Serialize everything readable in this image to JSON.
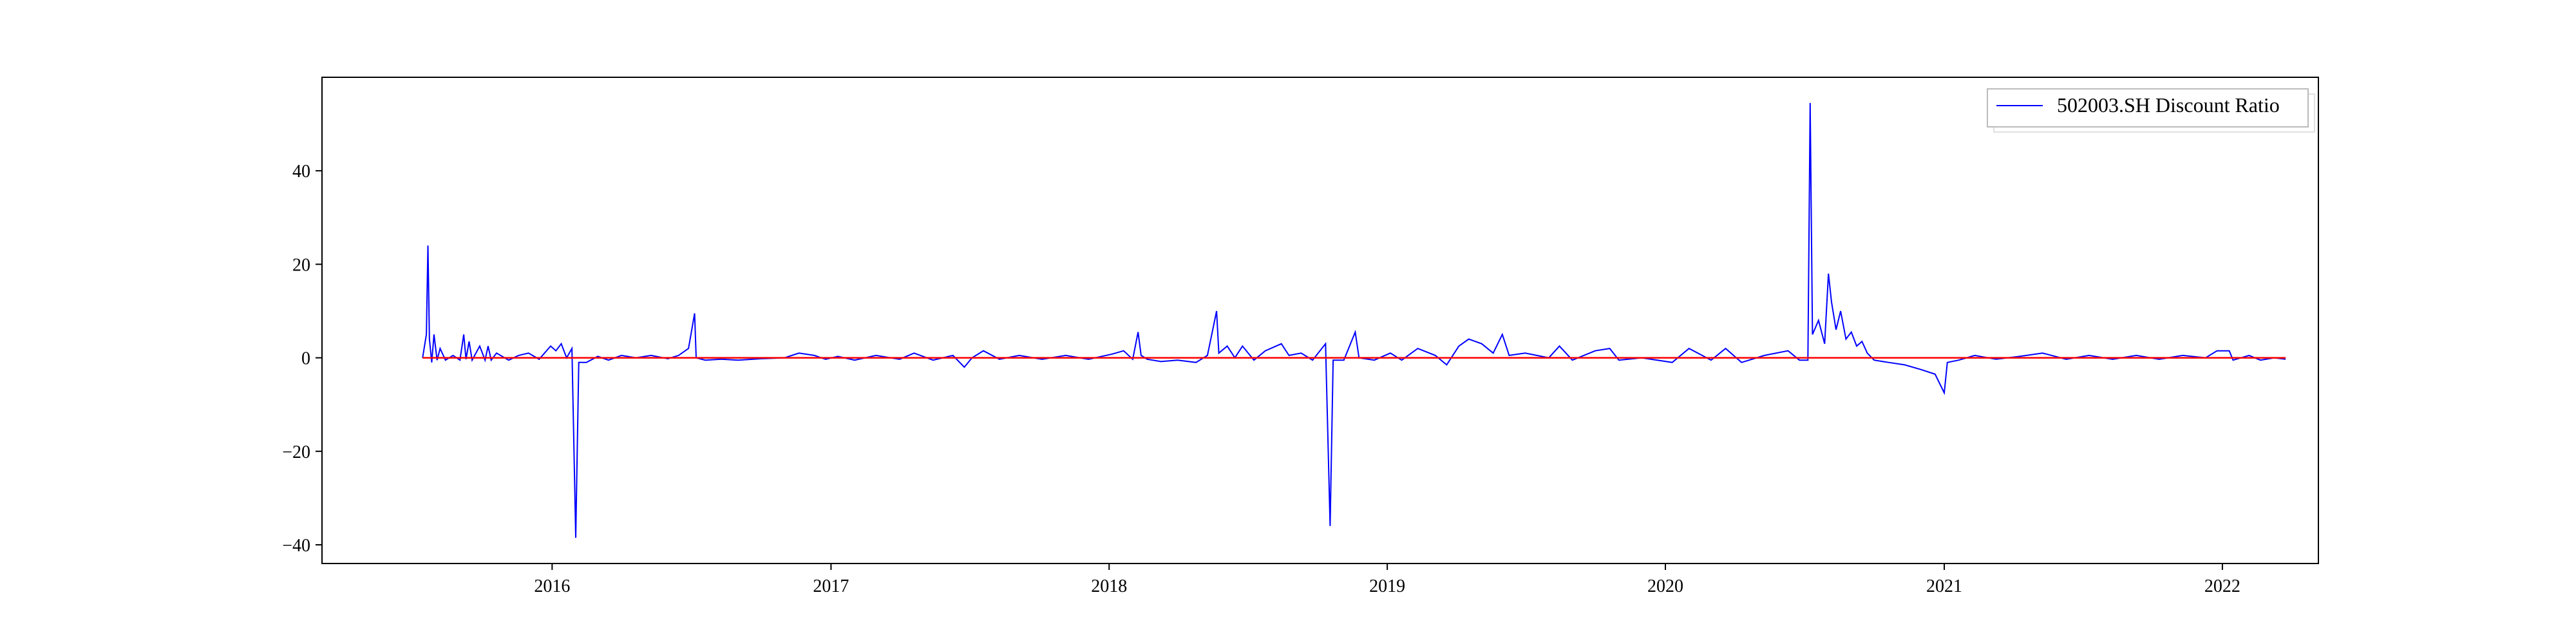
{
  "chart_data": {
    "type": "line",
    "title": "",
    "xlabel": "",
    "ylabel": "",
    "xlim": [
      "2015-03-05",
      "2022-05-07"
    ],
    "ylim": [
      -44,
      60
    ],
    "x_ticks": [
      "2016",
      "2017",
      "2018",
      "2019",
      "2020",
      "2021",
      "2022"
    ],
    "y_ticks": [
      40,
      20,
      0,
      -20,
      -40
    ],
    "grid": false,
    "legend": {
      "placement": "top-right"
    },
    "series": [
      {
        "name": "502003.SH Discount Ratio",
        "color": "#0000ff",
        "points": [
          [
            "2015-07-15",
            0.0
          ],
          [
            "2015-07-20",
            5.0
          ],
          [
            "2015-07-22",
            24.0
          ],
          [
            "2015-07-24",
            4.0
          ],
          [
            "2015-07-27",
            -1.0
          ],
          [
            "2015-07-30",
            5.0
          ],
          [
            "2015-08-03",
            -0.5
          ],
          [
            "2015-08-07",
            2.0
          ],
          [
            "2015-08-14",
            -0.5
          ],
          [
            "2015-08-24",
            0.5
          ],
          [
            "2015-09-02",
            -0.5
          ],
          [
            "2015-09-07",
            5.0
          ],
          [
            "2015-09-10",
            -0.3
          ],
          [
            "2015-09-14",
            3.5
          ],
          [
            "2015-09-18",
            -0.5
          ],
          [
            "2015-09-28",
            2.5
          ],
          [
            "2015-10-05",
            -0.5
          ],
          [
            "2015-10-09",
            2.5
          ],
          [
            "2015-10-13",
            -0.5
          ],
          [
            "2015-10-20",
            1.0
          ],
          [
            "2015-11-05",
            -0.5
          ],
          [
            "2015-11-18",
            0.5
          ],
          [
            "2015-12-01",
            1.0
          ],
          [
            "2015-12-15",
            -0.3
          ],
          [
            "2015-12-30",
            2.5
          ],
          [
            "2016-01-06",
            1.5
          ],
          [
            "2016-01-13",
            3.0
          ],
          [
            "2016-01-20",
            0.0
          ],
          [
            "2016-01-27",
            2.0
          ],
          [
            "2016-02-01",
            -38.5
          ],
          [
            "2016-02-05",
            -1.0
          ],
          [
            "2016-02-15",
            -1.0
          ],
          [
            "2016-03-01",
            0.3
          ],
          [
            "2016-03-15",
            -0.5
          ],
          [
            "2016-04-01",
            0.5
          ],
          [
            "2016-04-20",
            0.0
          ],
          [
            "2016-05-10",
            0.5
          ],
          [
            "2016-06-01",
            -0.2
          ],
          [
            "2016-06-15",
            0.5
          ],
          [
            "2016-06-28",
            2.0
          ],
          [
            "2016-07-06",
            9.5
          ],
          [
            "2016-07-08",
            0.0
          ],
          [
            "2016-07-20",
            -0.5
          ],
          [
            "2016-08-10",
            -0.3
          ],
          [
            "2016-09-01",
            -0.5
          ],
          [
            "2016-10-01",
            -0.2
          ],
          [
            "2016-11-01",
            0.0
          ],
          [
            "2016-11-20",
            1.0
          ],
          [
            "2016-12-10",
            0.5
          ],
          [
            "2016-12-25",
            -0.3
          ],
          [
            "2017-01-10",
            0.3
          ],
          [
            "2017-02-01",
            -0.5
          ],
          [
            "2017-03-01",
            0.5
          ],
          [
            "2017-04-01",
            -0.3
          ],
          [
            "2017-04-20",
            1.0
          ],
          [
            "2017-05-15",
            -0.5
          ],
          [
            "2017-06-10",
            0.5
          ],
          [
            "2017-06-25",
            -2.0
          ],
          [
            "2017-07-05",
            0.0
          ],
          [
            "2017-07-20",
            1.5
          ],
          [
            "2017-08-10",
            -0.3
          ],
          [
            "2017-09-05",
            0.5
          ],
          [
            "2017-10-05",
            -0.3
          ],
          [
            "2017-11-05",
            0.5
          ],
          [
            "2017-12-05",
            -0.3
          ],
          [
            "2018-01-05",
            0.8
          ],
          [
            "2018-01-20",
            1.5
          ],
          [
            "2018-02-01",
            -0.3
          ],
          [
            "2018-02-08",
            5.5
          ],
          [
            "2018-02-12",
            0.5
          ],
          [
            "2018-02-20",
            -0.3
          ],
          [
            "2018-03-10",
            -0.8
          ],
          [
            "2018-04-01",
            -0.5
          ],
          [
            "2018-04-25",
            -1.0
          ],
          [
            "2018-05-10",
            0.5
          ],
          [
            "2018-05-22",
            10.0
          ],
          [
            "2018-05-25",
            1.0
          ],
          [
            "2018-06-05",
            2.5
          ],
          [
            "2018-06-15",
            0.0
          ],
          [
            "2018-06-25",
            2.5
          ],
          [
            "2018-07-10",
            -0.5
          ],
          [
            "2018-07-25",
            1.5
          ],
          [
            "2018-08-15",
            3.0
          ],
          [
            "2018-08-25",
            0.5
          ],
          [
            "2018-09-10",
            1.0
          ],
          [
            "2018-09-25",
            -0.5
          ],
          [
            "2018-10-12",
            3.0
          ],
          [
            "2018-10-18",
            -36.0
          ],
          [
            "2018-10-22",
            -0.5
          ],
          [
            "2018-11-05",
            -0.5
          ],
          [
            "2018-11-20",
            5.5
          ],
          [
            "2018-11-25",
            0.0
          ],
          [
            "2018-12-15",
            -0.5
          ],
          [
            "2019-01-05",
            1.0
          ],
          [
            "2019-01-20",
            -0.5
          ],
          [
            "2019-02-10",
            2.0
          ],
          [
            "2019-03-05",
            0.5
          ],
          [
            "2019-03-20",
            -1.5
          ],
          [
            "2019-04-05",
            2.5
          ],
          [
            "2019-04-18",
            4.0
          ],
          [
            "2019-05-05",
            3.0
          ],
          [
            "2019-05-20",
            1.0
          ],
          [
            "2019-06-01",
            5.0
          ],
          [
            "2019-06-10",
            0.5
          ],
          [
            "2019-07-01",
            1.0
          ],
          [
            "2019-08-01",
            0.0
          ],
          [
            "2019-08-15",
            2.5
          ],
          [
            "2019-09-01",
            -0.5
          ],
          [
            "2019-10-01",
            1.5
          ],
          [
            "2019-10-20",
            2.0
          ],
          [
            "2019-11-01",
            -0.5
          ],
          [
            "2019-12-01",
            0.0
          ],
          [
            "2020-01-10",
            -1.0
          ],
          [
            "2020-02-01",
            2.0
          ],
          [
            "2020-03-01",
            -0.5
          ],
          [
            "2020-03-20",
            2.0
          ],
          [
            "2020-04-10",
            -1.0
          ],
          [
            "2020-05-10",
            0.5
          ],
          [
            "2020-06-10",
            1.5
          ],
          [
            "2020-06-25",
            -0.5
          ],
          [
            "2020-07-06",
            -0.5
          ],
          [
            "2020-07-09",
            54.5
          ],
          [
            "2020-07-12",
            5.0
          ],
          [
            "2020-07-20",
            8.0
          ],
          [
            "2020-07-28",
            3.0
          ],
          [
            "2020-08-02",
            18.0
          ],
          [
            "2020-08-06",
            12.0
          ],
          [
            "2020-08-12",
            6.0
          ],
          [
            "2020-08-18",
            10.0
          ],
          [
            "2020-08-25",
            4.0
          ],
          [
            "2020-09-01",
            5.5
          ],
          [
            "2020-09-08",
            2.5
          ],
          [
            "2020-09-15",
            3.5
          ],
          [
            "2020-09-22",
            1.0
          ],
          [
            "2020-10-01",
            -0.5
          ],
          [
            "2020-10-20",
            -1.0
          ],
          [
            "2020-11-10",
            -1.5
          ],
          [
            "2020-12-01",
            -2.5
          ],
          [
            "2020-12-20",
            -3.5
          ],
          [
            "2021-01-01",
            -7.5
          ],
          [
            "2021-01-05",
            -1.0
          ],
          [
            "2021-01-20",
            -0.5
          ],
          [
            "2021-02-10",
            0.5
          ],
          [
            "2021-03-10",
            -0.3
          ],
          [
            "2021-04-10",
            0.3
          ],
          [
            "2021-05-10",
            1.0
          ],
          [
            "2021-06-10",
            -0.3
          ],
          [
            "2021-07-10",
            0.5
          ],
          [
            "2021-08-10",
            -0.3
          ],
          [
            "2021-09-10",
            0.5
          ],
          [
            "2021-10-10",
            -0.3
          ],
          [
            "2021-11-10",
            0.5
          ],
          [
            "2021-12-10",
            0.0
          ],
          [
            "2021-12-25",
            1.5
          ],
          [
            "2022-01-10",
            1.5
          ],
          [
            "2022-01-15",
            -0.5
          ],
          [
            "2022-02-05",
            0.5
          ],
          [
            "2022-02-20",
            -0.5
          ],
          [
            "2022-03-10",
            0.0
          ],
          [
            "2022-03-25",
            -0.3
          ]
        ]
      },
      {
        "name": "",
        "color": "#ff0000",
        "points": [
          [
            "2015-07-15",
            0
          ],
          [
            "2022-03-25",
            0
          ]
        ]
      }
    ]
  }
}
